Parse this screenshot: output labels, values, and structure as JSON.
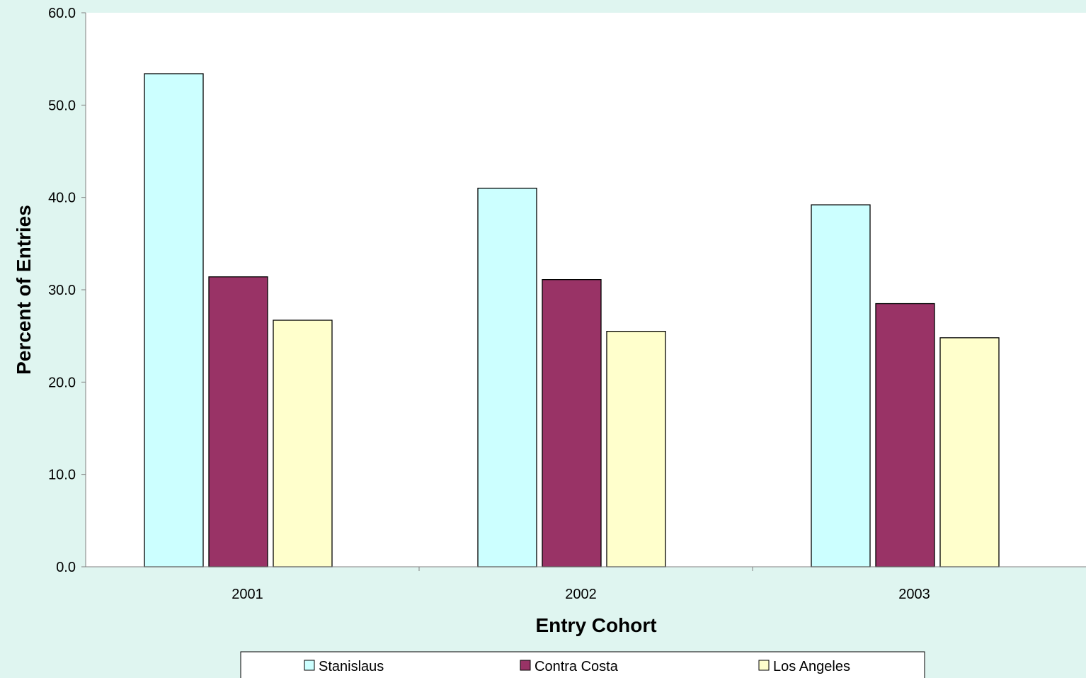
{
  "chart_data": {
    "type": "bar",
    "title": "",
    "xlabel": "Entry Cohort",
    "ylabel": "Percent of Entries",
    "categories": [
      "2001",
      "2002",
      "2003"
    ],
    "series": [
      {
        "name": "Stanislaus",
        "color": "#ccffff",
        "values": [
          53.4,
          41.0,
          39.2
        ]
      },
      {
        "name": "Contra Costa",
        "color": "#993366",
        "values": [
          31.4,
          31.1,
          28.5
        ]
      },
      {
        "name": "Los Angeles",
        "color": "#ffffcc",
        "values": [
          26.7,
          25.5,
          24.8
        ]
      }
    ],
    "ylim": [
      0,
      60
    ],
    "yticks": [
      "0.0",
      "10.0",
      "20.0",
      "30.0",
      "40.0",
      "50.0",
      "60.0"
    ],
    "grid": false,
    "legend_position": "bottom",
    "colors": {
      "background": "#dff5f0",
      "plot_area": "#ffffff",
      "axis": "#808080",
      "bar_border": "#000000"
    }
  }
}
